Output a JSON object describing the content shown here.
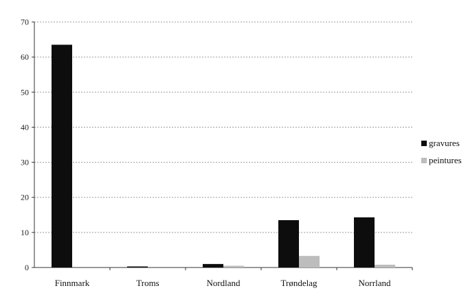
{
  "chart_data": {
    "type": "bar",
    "categories": [
      "Finnmark",
      "Troms",
      "Nordland",
      "Trøndelag",
      "Norrland"
    ],
    "series": [
      {
        "name": "gravures",
        "values": [
          63.5,
          0.3,
          1.0,
          13.5,
          14.3
        ],
        "color": "#0d0d0d"
      },
      {
        "name": "peintures",
        "values": [
          0,
          0,
          0.5,
          3.3,
          0.8
        ],
        "color": "#bdbdbd"
      }
    ],
    "title": "",
    "xlabel": "",
    "ylabel": "",
    "ylim": [
      0,
      70
    ],
    "yticks": [
      0,
      10,
      20,
      30,
      40,
      50,
      60,
      70
    ],
    "grid": true,
    "legend_position": "right"
  }
}
